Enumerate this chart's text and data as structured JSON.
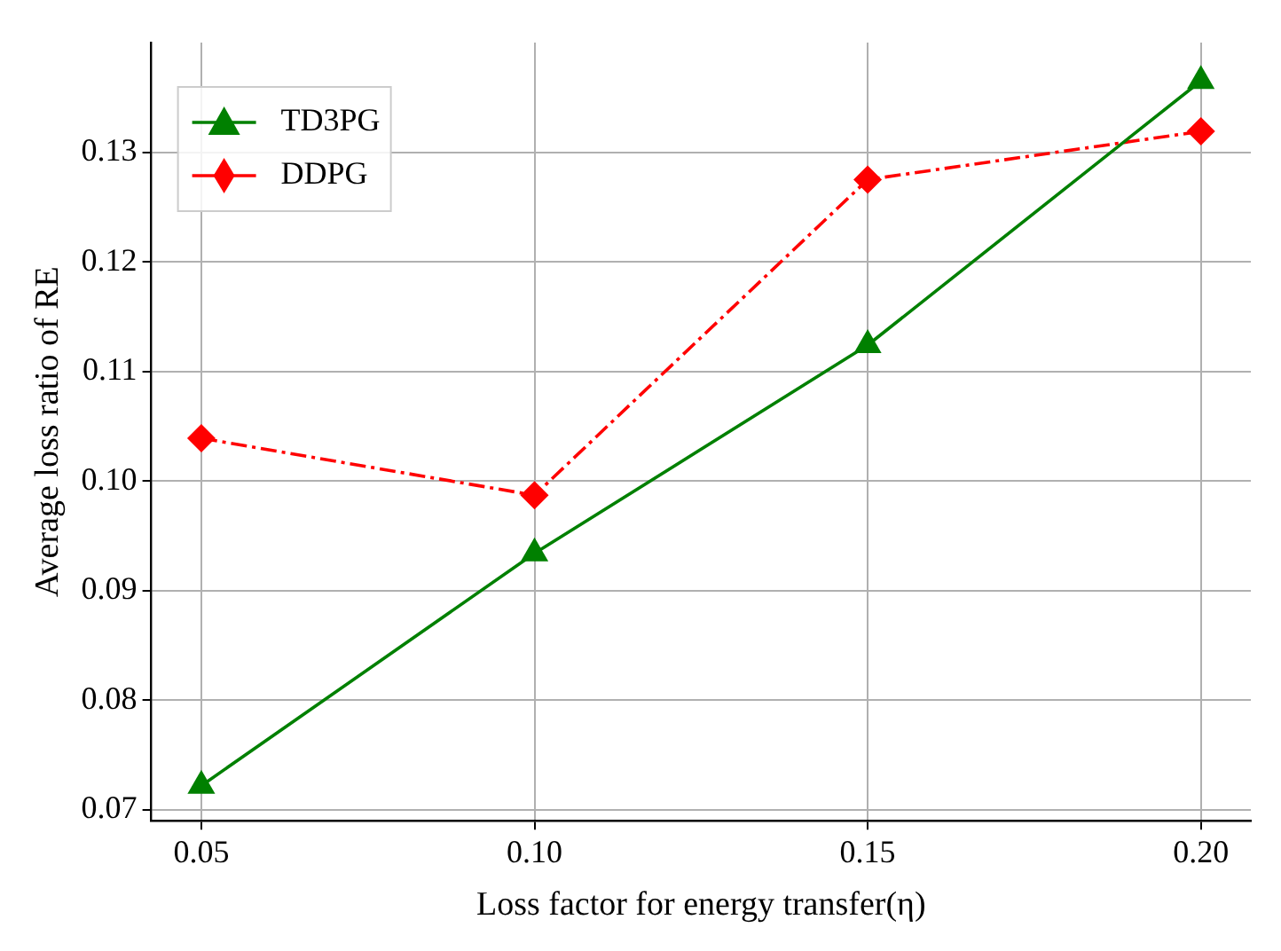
{
  "chart_data": {
    "type": "line",
    "xlabel": "Loss factor for energy transfer(η)",
    "ylabel": "Average loss ratio of RE",
    "x": [
      0.05,
      0.1,
      0.15,
      0.2
    ],
    "series": [
      {
        "name": "TD3PG",
        "color": "#008000",
        "values": [
          0.0722,
          0.0934,
          0.1124,
          0.1365
        ],
        "marker": "triangle",
        "line_style": "solid"
      },
      {
        "name": "DDPG",
        "color": "#ff0000",
        "values": [
          0.1039,
          0.0987,
          0.1275,
          0.1319
        ],
        "marker": "diamond",
        "line_style": "dashdot"
      }
    ],
    "xlim": [
      0.0425,
      0.2075
    ],
    "xticks": [
      0.05,
      {
        "value": 0.1,
        "label": "0.10"
      },
      0.15,
      {
        "value": 0.2,
        "label": "0.20"
      }
    ],
    "ylim": [
      0.069,
      0.14
    ],
    "yticks": [
      0.07,
      0.08,
      0.09,
      {
        "value": 0.1,
        "label": "0.10"
      },
      0.11,
      0.12,
      0.13
    ],
    "grid": true,
    "legend": "top left"
  }
}
